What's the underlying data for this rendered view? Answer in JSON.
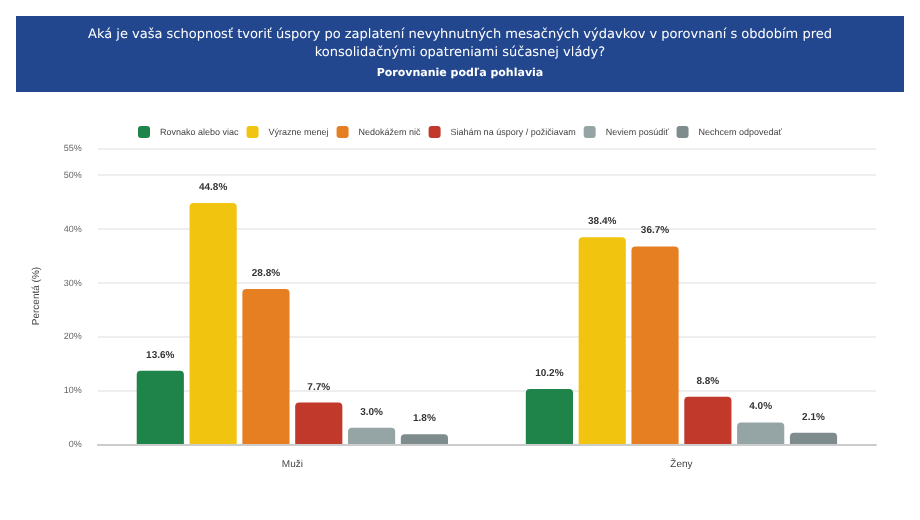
{
  "chart_data": {
    "type": "bar",
    "title": "Aká je vaša schopnosť tvoriť úspory po zaplatení nevyhnutných mesačných výdavkov v porovnaní s obdobím pred konsolidačnými opatreniami súčasnej vlády?",
    "subtitle": "Porovnanie podľa pohlavia",
    "ylabel": "Percentá (%)",
    "categories": [
      "Muži",
      "Ženy"
    ],
    "series": [
      {
        "name": "Rovnako alebo viac",
        "color": "#1e8449",
        "values": [
          13.6,
          10.2
        ],
        "value_labels": [
          "13.6%",
          "10.2%"
        ]
      },
      {
        "name": "Výrazne menej",
        "color": "#f1c40f",
        "values": [
          44.8,
          38.4
        ],
        "value_labels": [
          "44.8%",
          "38.4%"
        ]
      },
      {
        "name": "Nedokážem nič",
        "color": "#e67e22",
        "values": [
          28.8,
          36.7
        ],
        "value_labels": [
          "28.8%",
          "36.7%"
        ]
      },
      {
        "name": "Siahám na úspory / požičiavam",
        "color": "#c0392b",
        "values": [
          7.7,
          8.8
        ],
        "value_labels": [
          "7.7%",
          "8.8%"
        ]
      },
      {
        "name": "Neviem posúdiť",
        "color": "#95a5a6",
        "values": [
          3.0,
          4.0
        ],
        "value_labels": [
          "3.0%",
          "4.0%"
        ]
      },
      {
        "name": "Nechcem odpovedať",
        "color": "#7f8c8d",
        "values": [
          1.8,
          2.1
        ],
        "value_labels": [
          "1.8%",
          "2.1%"
        ]
      }
    ],
    "ylim": [
      0,
      55
    ],
    "yticks": [
      {
        "value": 0,
        "label": "0%"
      },
      {
        "value": 10,
        "label": "10%"
      },
      {
        "value": 20,
        "label": "20%"
      },
      {
        "value": 30,
        "label": "30%"
      },
      {
        "value": 40,
        "label": "40%"
      },
      {
        "value": 50,
        "label": "50%"
      },
      {
        "value": 55,
        "label": "55%"
      }
    ],
    "grid": "y",
    "legend": "top"
  }
}
